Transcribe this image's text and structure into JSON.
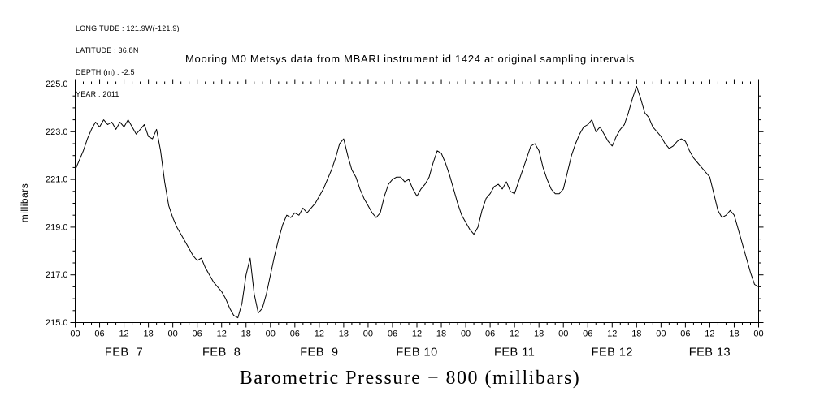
{
  "metadata": {
    "longitude": "LONGITUDE : 121.9W(-121.9)",
    "latitude": "LATITUDE : 36.8N",
    "depth": "DEPTH (m) : -2.5",
    "year": "YEAR : 2011"
  },
  "chart_data": {
    "type": "line",
    "title": "Mooring M0 Metsys data from MBARI instrument id 1424 at original sampling intervals",
    "ylabel": "millibars",
    "xlabel": "Barometric Pressure − 800 (millibars)",
    "ylim": [
      215.0,
      225.0
    ],
    "yticks": [
      215.0,
      217.0,
      219.0,
      221.0,
      223.0,
      225.0
    ],
    "ytick_labels": [
      "215.0",
      "217.0",
      "219.0",
      "221.0",
      "223.0",
      "225.0"
    ],
    "y_minor_tick": 0.5,
    "x_hours_range": [
      0,
      168
    ],
    "x_major_tick_hours": 6,
    "x_minor_tick_hours": 2,
    "xtick_label_cycle": [
      "00",
      "06",
      "12",
      "18"
    ],
    "day_labels": [
      "FEB  7",
      "FEB  8",
      "FEB  9",
      "FEB 10",
      "FEB 11",
      "FEB 12",
      "FEB 13"
    ],
    "grid": false,
    "legend": "none",
    "line_color": "#000000",
    "background": "#ffffff",
    "series": [
      {
        "name": "barometric_pressure_minus_800_millibars",
        "start_hour": 0,
        "sample_interval_hours": 1,
        "values": [
          221.4,
          221.8,
          222.2,
          222.7,
          223.1,
          223.4,
          223.2,
          223.5,
          223.3,
          223.4,
          223.1,
          223.4,
          223.2,
          223.5,
          223.2,
          222.9,
          223.1,
          223.3,
          222.8,
          222.7,
          223.1,
          222.2,
          220.9,
          219.9,
          219.4,
          219.0,
          218.7,
          218.4,
          218.1,
          217.8,
          217.6,
          217.7,
          217.3,
          217.0,
          216.7,
          216.5,
          216.3,
          216.0,
          215.6,
          215.3,
          215.2,
          215.8,
          217.0,
          217.7,
          216.2,
          215.4,
          215.6,
          216.2,
          217.0,
          217.8,
          218.5,
          219.1,
          219.5,
          219.4,
          219.6,
          219.5,
          219.8,
          219.6,
          219.8,
          220.0,
          220.3,
          220.6,
          221.0,
          221.4,
          221.9,
          222.5,
          222.7,
          222.0,
          221.4,
          221.1,
          220.6,
          220.2,
          219.9,
          219.6,
          219.4,
          219.6,
          220.3,
          220.8,
          221.0,
          221.1,
          221.1,
          220.9,
          221.0,
          220.6,
          220.3,
          220.6,
          220.8,
          221.1,
          221.7,
          222.2,
          222.1,
          221.7,
          221.2,
          220.6,
          220.0,
          219.5,
          219.2,
          218.9,
          218.7,
          219.0,
          219.7,
          220.2,
          220.4,
          220.7,
          220.8,
          220.6,
          220.9,
          220.5,
          220.4,
          220.9,
          221.4,
          221.9,
          222.4,
          222.5,
          222.2,
          221.5,
          221.0,
          220.6,
          220.4,
          220.4,
          220.6,
          221.3,
          222.0,
          222.5,
          222.9,
          223.2,
          223.3,
          223.5,
          223.0,
          223.2,
          222.9,
          222.6,
          222.4,
          222.8,
          223.1,
          223.3,
          223.8,
          224.4,
          224.9,
          224.4,
          223.8,
          223.6,
          223.2,
          223.0,
          222.8,
          222.5,
          222.3,
          222.4,
          222.6,
          222.7,
          222.6,
          222.2,
          221.9,
          221.7,
          221.5,
          221.3,
          221.1,
          220.4,
          219.7,
          219.4,
          219.5,
          219.7,
          219.5,
          218.9,
          218.3,
          217.7,
          217.1,
          216.6,
          216.5
        ]
      }
    ]
  }
}
